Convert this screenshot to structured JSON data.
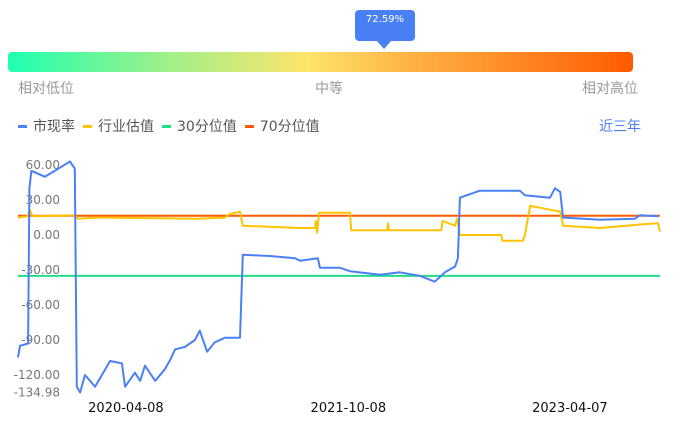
{
  "gauge": {
    "percentile_label": "72.59%",
    "percentile": 72.59,
    "labels": {
      "low": "相对低位",
      "mid": "中等",
      "high": "相对高位"
    }
  },
  "period_button": "近三年",
  "chart_data": {
    "type": "line",
    "title": "",
    "xlabel": "",
    "ylabel": "",
    "ylim": [
      -134.98,
      66
    ],
    "xlim": [
      "2019-07-17",
      "2023-11-15"
    ],
    "yticks": [
      "60.00",
      "30.00",
      "0.00",
      "-30.00",
      "-60.00",
      "-90.00",
      "-120.00",
      "-134.98"
    ],
    "ytick_values": [
      60,
      30,
      0,
      -30,
      -60,
      -90,
      -120,
      -134.98
    ],
    "xticks": [
      "2020-04-08",
      "2021-10-08",
      "2023-04-07"
    ],
    "grid": false,
    "legend_position": "top-left",
    "series": [
      {
        "name": "市现率",
        "color": "#4a80f5",
        "points": [
          [
            "2019-07-17",
            -105
          ],
          [
            "2019-07-22",
            -95
          ],
          [
            "2019-08-11",
            -93
          ],
          [
            "2019-08-14",
            40
          ],
          [
            "2019-08-19",
            55
          ],
          [
            "2019-09-21",
            50
          ],
          [
            "2019-10-16",
            55
          ],
          [
            "2019-11-22",
            63
          ],
          [
            "2019-12-04",
            57
          ],
          [
            "2019-12-09",
            -130
          ],
          [
            "2019-12-17",
            -135
          ],
          [
            "2019-12-29",
            -120
          ],
          [
            "2020-01-23",
            -130
          ],
          [
            "2020-02-29",
            -108
          ],
          [
            "2020-03-29",
            -110
          ],
          [
            "2020-04-06",
            -130
          ],
          [
            "2020-04-30",
            -118
          ],
          [
            "2020-05-13",
            -125
          ],
          [
            "2020-05-25",
            -112
          ],
          [
            "2020-06-19",
            -125
          ],
          [
            "2020-07-13",
            -115
          ],
          [
            "2020-07-26",
            -107
          ],
          [
            "2020-08-07",
            -98
          ],
          [
            "2020-08-31",
            -96
          ],
          [
            "2020-09-25",
            -90
          ],
          [
            "2020-10-07",
            -82
          ],
          [
            "2020-10-25",
            -100
          ],
          [
            "2020-11-13",
            -92
          ],
          [
            "2020-12-08",
            -88
          ],
          [
            "2021-01-14",
            -88
          ],
          [
            "2021-01-21",
            -17
          ],
          [
            "2021-03-29",
            -18
          ],
          [
            "2021-05-30",
            -20
          ],
          [
            "2021-06-11",
            -22
          ],
          [
            "2021-07-25",
            -20
          ],
          [
            "2021-07-30",
            -28
          ],
          [
            "2021-09-17",
            -28
          ],
          [
            "2021-10-12",
            -31
          ],
          [
            "2021-12-25",
            -34
          ],
          [
            "2022-02-12",
            -32
          ],
          [
            "2022-04-02",
            -35
          ],
          [
            "2022-05-09",
            -40
          ],
          [
            "2022-06-03",
            -32
          ],
          [
            "2022-06-28",
            -27
          ],
          [
            "2022-07-05",
            -20
          ],
          [
            "2022-07-10",
            32
          ],
          [
            "2022-08-28",
            38
          ],
          [
            "2022-12-05",
            38
          ],
          [
            "2022-12-17",
            34
          ],
          [
            "2023-02-17",
            32
          ],
          [
            "2023-03-01",
            40
          ],
          [
            "2023-03-14",
            37
          ],
          [
            "2023-03-21",
            15
          ],
          [
            "2023-06-20",
            13
          ],
          [
            "2023-09-14",
            14
          ],
          [
            "2023-09-27",
            17
          ],
          [
            "2023-11-10",
            16
          ]
        ]
      },
      {
        "name": "行业估值",
        "color": "#ffc300",
        "points": [
          [
            "2019-07-17",
            15
          ],
          [
            "2019-08-11",
            16
          ],
          [
            "2019-08-14",
            22
          ],
          [
            "2019-08-22",
            16
          ],
          [
            "2019-12-04",
            17
          ],
          [
            "2019-12-12",
            14
          ],
          [
            "2020-02-01",
            15
          ],
          [
            "2020-10-01",
            14
          ],
          [
            "2020-12-08",
            15
          ],
          [
            "2020-12-20",
            18
          ],
          [
            "2021-01-14",
            20
          ],
          [
            "2021-01-21",
            8
          ],
          [
            "2021-06-11",
            6
          ],
          [
            "2021-07-18",
            6
          ],
          [
            "2021-07-20",
            12
          ],
          [
            "2021-07-23",
            2
          ],
          [
            "2021-07-28",
            19
          ],
          [
            "2021-10-12",
            19
          ],
          [
            "2021-10-15",
            4
          ],
          [
            "2022-01-12",
            4
          ],
          [
            "2022-01-14",
            10
          ],
          [
            "2022-01-16",
            4
          ],
          [
            "2022-05-25",
            4
          ],
          [
            "2022-05-28",
            12
          ],
          [
            "2022-06-28",
            8
          ],
          [
            "2022-07-03",
            14
          ],
          [
            "2022-07-10",
            0
          ],
          [
            "2022-10-20",
            0
          ],
          [
            "2022-10-23",
            -5
          ],
          [
            "2022-12-12",
            -5
          ],
          [
            "2022-12-17",
            0
          ],
          [
            "2022-12-30",
            25
          ],
          [
            "2023-03-14",
            20
          ],
          [
            "2023-03-21",
            8
          ],
          [
            "2023-06-20",
            6
          ],
          [
            "2023-09-27",
            9
          ],
          [
            "2023-11-10",
            10
          ],
          [
            "2023-11-15",
            3
          ]
        ]
      },
      {
        "name": "30分位值",
        "color": "#22dd88",
        "constant": -35
      },
      {
        "name": "70分位值",
        "color": "#ff5a00",
        "constant": 16.5
      }
    ]
  }
}
